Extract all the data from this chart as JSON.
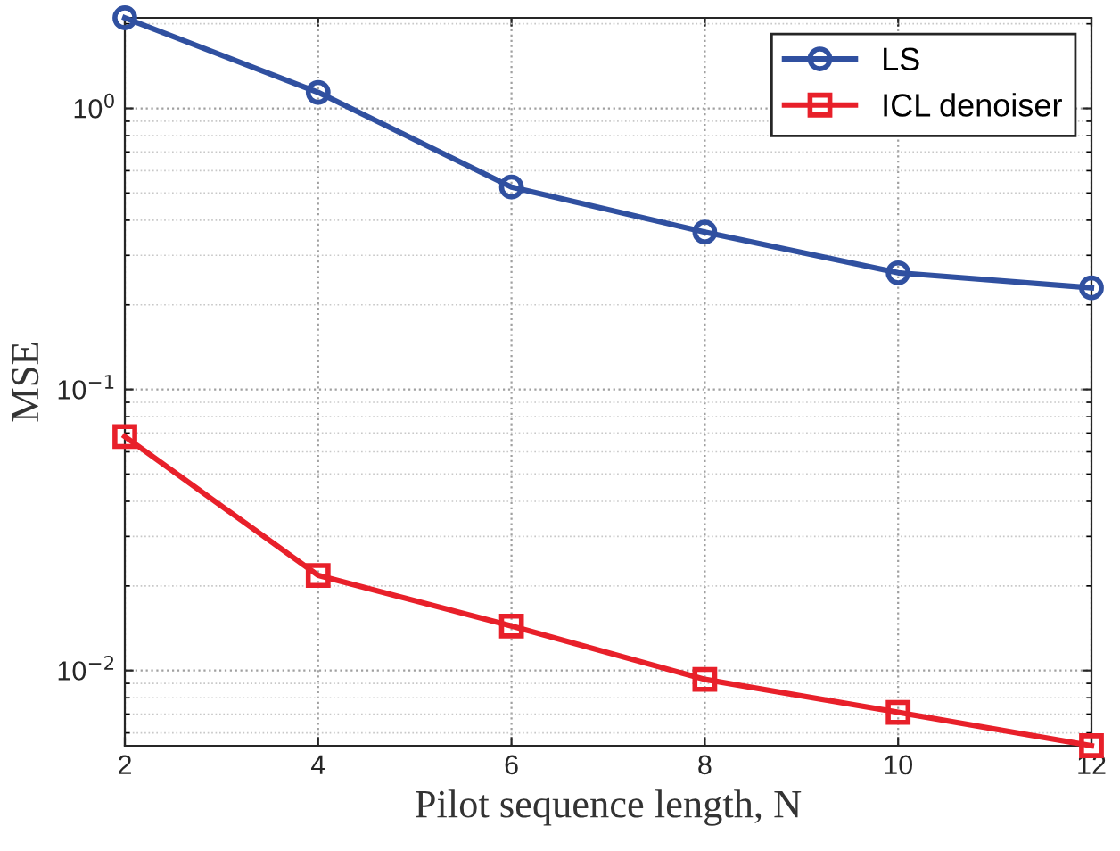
{
  "chart_data": {
    "type": "line",
    "xlabel": "Pilot sequence length, N",
    "ylabel": "MSE",
    "x": [
      2,
      4,
      6,
      8,
      10,
      12
    ],
    "series": [
      {
        "name": "LS",
        "color": "#3050a0",
        "marker": "circle",
        "values": [
          2.1,
          1.14,
          0.525,
          0.363,
          0.26,
          0.23
        ]
      },
      {
        "name": "ICL denoiser",
        "color": "#e8202a",
        "marker": "square",
        "values": [
          0.068,
          0.0218,
          0.0144,
          0.0093,
          0.0071,
          0.0054
        ]
      }
    ],
    "log": "y",
    "xlim": [
      2,
      12
    ],
    "xticks": [
      2,
      4,
      6,
      8,
      10,
      12
    ],
    "ylim": [
      0.0054,
      2.1
    ],
    "yticks": [
      {
        "value": 0.01,
        "label": "10$^{−2}$"
      },
      {
        "value": 0.1,
        "label": "10$^{−1}$"
      },
      {
        "value": 1,
        "label": "10$^{0}$"
      }
    ],
    "grid": true,
    "legend": "top right",
    "line_style": "solid"
  }
}
